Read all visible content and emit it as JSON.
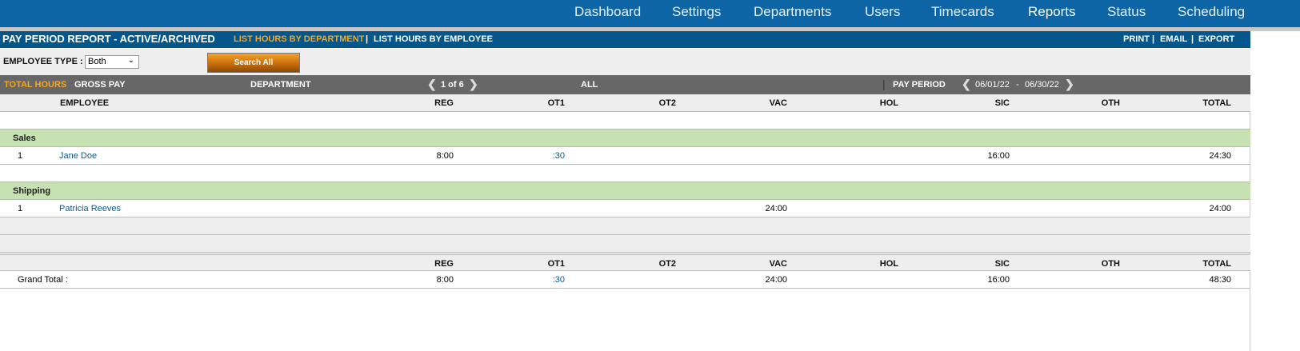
{
  "nav": {
    "items": [
      "Dashboard",
      "Settings",
      "Departments",
      "Users",
      "Timecards",
      "Reports",
      "Status",
      "Scheduling"
    ],
    "active": "Reports"
  },
  "titlebar": {
    "title": "PAY PERIOD REPORT - ACTIVE/ARCHIVED",
    "by_department": "LIST HOURS BY DEPARTMENT",
    "separator": "|",
    "by_employee": "LIST HOURS BY EMPLOYEE",
    "print": "PRINT",
    "email": "EMAIL",
    "export": "EXPORT"
  },
  "filters": {
    "employee_type_label": "EMPLOYEE TYPE :",
    "employee_type_value": "Both",
    "search_all": "Search All"
  },
  "bar": {
    "total_hours": "TOTAL HOURS",
    "gross_pay": "GROSS PAY",
    "department_label": "DEPARTMENT",
    "page": "1 of 6",
    "department_value": "ALL",
    "pay_period_label": "PAY PERIOD",
    "period_start": "06/01/22",
    "period_dash": "-",
    "period_end": "06/30/22"
  },
  "columns": {
    "employee": "EMPLOYEE",
    "hours": [
      "REG",
      "OT1",
      "OT2",
      "VAC",
      "HOL",
      "SIC",
      "OTH",
      "TOTAL"
    ]
  },
  "departments": [
    {
      "name": "Sales",
      "employees": [
        {
          "num": "1",
          "name": "Jane Doe",
          "hours": [
            "8:00",
            ":30",
            "",
            "",
            "",
            "16:00",
            "",
            "24:30"
          ]
        }
      ]
    },
    {
      "name": "Shipping",
      "employees": [
        {
          "num": "1",
          "name": "Patricia Reeves",
          "hours": [
            "",
            "",
            "",
            "24:00",
            "",
            "",
            "",
            "24:00"
          ]
        }
      ]
    }
  ],
  "grand_total": {
    "label": "Grand Total :",
    "hours": [
      "8:00",
      ":30",
      "",
      "24:00",
      "",
      "16:00",
      "",
      "48:30"
    ]
  },
  "colors": {
    "nav": "#0e65a6",
    "titlebar": "#05568b",
    "accent": "#f5a623",
    "dept_row": "#c6e2b3",
    "bar": "#676767"
  }
}
